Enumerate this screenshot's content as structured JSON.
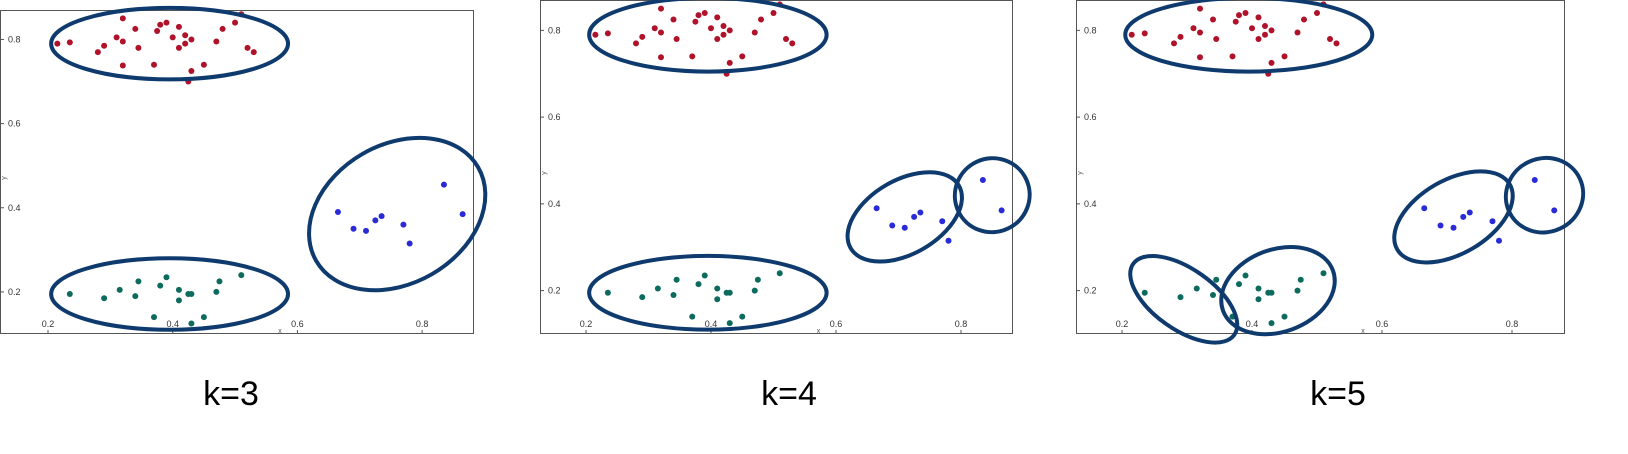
{
  "colors": {
    "cluster_red": "#b0122a",
    "cluster_teal": "#0d6b5e",
    "cluster_blue": "#2a2ad6",
    "ellipse": "#0e3a6e",
    "frame": "#555555"
  },
  "chart_data": [
    {
      "type": "scatter",
      "title": "",
      "caption": "k=3",
      "xlabel": "x",
      "ylabel": "y",
      "xlim": [
        0.2,
        0.88
      ],
      "ylim": [
        0.1,
        0.87
      ],
      "xticks": [
        0.2,
        0.4,
        0.6,
        0.8
      ],
      "yticks": [
        0.2,
        0.4,
        0.6,
        0.8
      ],
      "series": [
        {
          "color": "cluster_red",
          "points": [
            [
              0.215,
              0.79
            ],
            [
              0.235,
              0.793
            ],
            [
              0.28,
              0.77
            ],
            [
              0.29,
              0.785
            ],
            [
              0.31,
              0.805
            ],
            [
              0.32,
              0.795
            ],
            [
              0.32,
              0.738
            ],
            [
              0.32,
              0.85
            ],
            [
              0.34,
              0.825
            ],
            [
              0.345,
              0.78
            ],
            [
              0.37,
              0.74
            ],
            [
              0.375,
              0.82
            ],
            [
              0.38,
              0.835
            ],
            [
              0.39,
              0.84
            ],
            [
              0.4,
              0.805
            ],
            [
              0.41,
              0.83
            ],
            [
              0.41,
              0.78
            ],
            [
              0.42,
              0.81
            ],
            [
              0.42,
              0.79
            ],
            [
              0.43,
              0.8
            ],
            [
              0.43,
              0.725
            ],
            [
              0.425,
              0.7
            ],
            [
              0.45,
              0.74
            ],
            [
              0.47,
              0.795
            ],
            [
              0.48,
              0.825
            ],
            [
              0.5,
              0.84
            ],
            [
              0.51,
              0.86
            ],
            [
              0.52,
              0.78
            ],
            [
              0.53,
              0.77
            ]
          ]
        },
        {
          "color": "cluster_teal",
          "points": [
            [
              0.235,
              0.195
            ],
            [
              0.29,
              0.185
            ],
            [
              0.315,
              0.205
            ],
            [
              0.34,
              0.19
            ],
            [
              0.345,
              0.225
            ],
            [
              0.37,
              0.14
            ],
            [
              0.38,
              0.215
            ],
            [
              0.39,
              0.235
            ],
            [
              0.41,
              0.18
            ],
            [
              0.41,
              0.205
            ],
            [
              0.425,
              0.195
            ],
            [
              0.43,
              0.195
            ],
            [
              0.43,
              0.125
            ],
            [
              0.45,
              0.14
            ],
            [
              0.47,
              0.2
            ],
            [
              0.475,
              0.225
            ],
            [
              0.51,
              0.24
            ]
          ]
        },
        {
          "color": "cluster_blue",
          "points": [
            [
              0.665,
              0.39
            ],
            [
              0.69,
              0.35
            ],
            [
              0.71,
              0.345
            ],
            [
              0.725,
              0.37
            ],
            [
              0.735,
              0.38
            ],
            [
              0.77,
              0.36
            ],
            [
              0.78,
              0.315
            ],
            [
              0.835,
              0.455
            ],
            [
              0.865,
              0.385
            ]
          ]
        }
      ],
      "groups": [
        {
          "cx": 0.395,
          "cy": 0.79,
          "rx": 0.19,
          "ry": 0.085,
          "angle": 0
        },
        {
          "cx": 0.395,
          "cy": 0.195,
          "rx": 0.19,
          "ry": 0.085,
          "angle": 0
        },
        {
          "cx": 0.76,
          "cy": 0.385,
          "rx": 0.15,
          "ry": 0.165,
          "angle": 30
        }
      ]
    },
    {
      "type": "scatter",
      "title": "",
      "caption": "k=4",
      "xlabel": "x",
      "ylabel": "y",
      "xlim": [
        0.2,
        0.88
      ],
      "ylim": [
        0.1,
        0.87
      ],
      "xticks": [
        0.2,
        0.4,
        0.6,
        0.8
      ],
      "yticks": [
        0.2,
        0.4,
        0.6,
        0.8
      ],
      "series": [
        {
          "color": "cluster_red",
          "points": [
            [
              0.215,
              0.79
            ],
            [
              0.235,
              0.793
            ],
            [
              0.28,
              0.77
            ],
            [
              0.29,
              0.785
            ],
            [
              0.31,
              0.805
            ],
            [
              0.32,
              0.795
            ],
            [
              0.32,
              0.738
            ],
            [
              0.32,
              0.85
            ],
            [
              0.34,
              0.825
            ],
            [
              0.345,
              0.78
            ],
            [
              0.37,
              0.74
            ],
            [
              0.375,
              0.82
            ],
            [
              0.38,
              0.835
            ],
            [
              0.39,
              0.84
            ],
            [
              0.4,
              0.805
            ],
            [
              0.41,
              0.83
            ],
            [
              0.41,
              0.78
            ],
            [
              0.42,
              0.81
            ],
            [
              0.42,
              0.79
            ],
            [
              0.43,
              0.8
            ],
            [
              0.43,
              0.725
            ],
            [
              0.425,
              0.7
            ],
            [
              0.45,
              0.74
            ],
            [
              0.47,
              0.795
            ],
            [
              0.48,
              0.825
            ],
            [
              0.5,
              0.84
            ],
            [
              0.51,
              0.86
            ],
            [
              0.52,
              0.78
            ],
            [
              0.53,
              0.77
            ]
          ]
        },
        {
          "color": "cluster_teal",
          "points": [
            [
              0.235,
              0.195
            ],
            [
              0.29,
              0.185
            ],
            [
              0.315,
              0.205
            ],
            [
              0.34,
              0.19
            ],
            [
              0.345,
              0.225
            ],
            [
              0.37,
              0.14
            ],
            [
              0.38,
              0.215
            ],
            [
              0.39,
              0.235
            ],
            [
              0.41,
              0.18
            ],
            [
              0.41,
              0.205
            ],
            [
              0.425,
              0.195
            ],
            [
              0.43,
              0.195
            ],
            [
              0.43,
              0.125
            ],
            [
              0.45,
              0.14
            ],
            [
              0.47,
              0.2
            ],
            [
              0.475,
              0.225
            ],
            [
              0.51,
              0.24
            ]
          ]
        },
        {
          "color": "cluster_blue",
          "points": [
            [
              0.665,
              0.39
            ],
            [
              0.69,
              0.35
            ],
            [
              0.71,
              0.345
            ],
            [
              0.725,
              0.37
            ],
            [
              0.735,
              0.38
            ],
            [
              0.77,
              0.36
            ],
            [
              0.78,
              0.315
            ],
            [
              0.835,
              0.455
            ],
            [
              0.865,
              0.385
            ]
          ]
        }
      ],
      "groups": [
        {
          "cx": 0.395,
          "cy": 0.79,
          "rx": 0.19,
          "ry": 0.085,
          "angle": 0
        },
        {
          "cx": 0.395,
          "cy": 0.195,
          "rx": 0.19,
          "ry": 0.085,
          "angle": 0
        },
        {
          "cx": 0.71,
          "cy": 0.37,
          "rx": 0.1,
          "ry": 0.085,
          "angle": 30
        },
        {
          "cx": 0.85,
          "cy": 0.42,
          "rx": 0.06,
          "ry": 0.085,
          "angle": 25
        }
      ]
    },
    {
      "type": "scatter",
      "title": "",
      "caption": "k=5",
      "xlabel": "x",
      "ylabel": "y",
      "xlim": [
        0.2,
        0.88
      ],
      "ylim": [
        0.1,
        0.87
      ],
      "xticks": [
        0.2,
        0.4,
        0.6,
        0.8
      ],
      "yticks": [
        0.2,
        0.4,
        0.6,
        0.8
      ],
      "series": [
        {
          "color": "cluster_red",
          "points": [
            [
              0.215,
              0.79
            ],
            [
              0.235,
              0.793
            ],
            [
              0.28,
              0.77
            ],
            [
              0.29,
              0.785
            ],
            [
              0.31,
              0.805
            ],
            [
              0.32,
              0.795
            ],
            [
              0.32,
              0.738
            ],
            [
              0.32,
              0.85
            ],
            [
              0.34,
              0.825
            ],
            [
              0.345,
              0.78
            ],
            [
              0.37,
              0.74
            ],
            [
              0.375,
              0.82
            ],
            [
              0.38,
              0.835
            ],
            [
              0.39,
              0.84
            ],
            [
              0.4,
              0.805
            ],
            [
              0.41,
              0.83
            ],
            [
              0.41,
              0.78
            ],
            [
              0.42,
              0.81
            ],
            [
              0.42,
              0.79
            ],
            [
              0.43,
              0.8
            ],
            [
              0.43,
              0.725
            ],
            [
              0.425,
              0.7
            ],
            [
              0.45,
              0.74
            ],
            [
              0.47,
              0.795
            ],
            [
              0.48,
              0.825
            ],
            [
              0.5,
              0.84
            ],
            [
              0.51,
              0.86
            ],
            [
              0.52,
              0.78
            ],
            [
              0.53,
              0.77
            ]
          ]
        },
        {
          "color": "cluster_teal",
          "points": [
            [
              0.235,
              0.195
            ],
            [
              0.29,
              0.185
            ],
            [
              0.315,
              0.205
            ],
            [
              0.34,
              0.19
            ],
            [
              0.345,
              0.225
            ],
            [
              0.37,
              0.14
            ],
            [
              0.38,
              0.215
            ],
            [
              0.39,
              0.235
            ],
            [
              0.41,
              0.18
            ],
            [
              0.41,
              0.205
            ],
            [
              0.425,
              0.195
            ],
            [
              0.43,
              0.195
            ],
            [
              0.43,
              0.125
            ],
            [
              0.45,
              0.14
            ],
            [
              0.47,
              0.2
            ],
            [
              0.475,
              0.225
            ],
            [
              0.51,
              0.24
            ]
          ]
        },
        {
          "color": "cluster_blue",
          "points": [
            [
              0.665,
              0.39
            ],
            [
              0.69,
              0.35
            ],
            [
              0.71,
              0.345
            ],
            [
              0.725,
              0.37
            ],
            [
              0.735,
              0.38
            ],
            [
              0.77,
              0.36
            ],
            [
              0.78,
              0.315
            ],
            [
              0.835,
              0.455
            ],
            [
              0.865,
              0.385
            ]
          ]
        }
      ],
      "groups": [
        {
          "cx": 0.395,
          "cy": 0.79,
          "rx": 0.19,
          "ry": 0.085,
          "angle": 0
        },
        {
          "cx": 0.295,
          "cy": 0.18,
          "rx": 0.095,
          "ry": 0.07,
          "angle": -35
        },
        {
          "cx": 0.44,
          "cy": 0.2,
          "rx": 0.09,
          "ry": 0.095,
          "angle": 20
        },
        {
          "cx": 0.71,
          "cy": 0.37,
          "rx": 0.1,
          "ry": 0.085,
          "angle": 30
        },
        {
          "cx": 0.85,
          "cy": 0.42,
          "rx": 0.06,
          "ry": 0.085,
          "angle": 25
        }
      ]
    }
  ]
}
